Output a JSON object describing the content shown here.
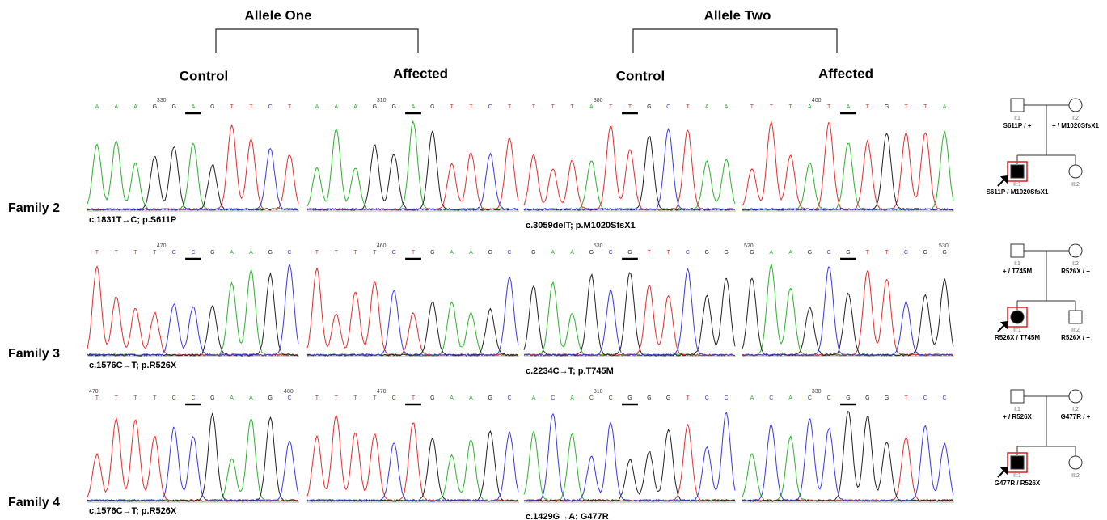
{
  "alleles": [
    "Allele One",
    "Allele Two"
  ],
  "columns": [
    "Control",
    "Affected",
    "Control",
    "Affected"
  ],
  "families": [
    {
      "label": "Family 2",
      "mutations": [
        "c.1831T→C; p.S611P",
        "c.3059delT; p.M1020SfsX1"
      ],
      "traces": [
        {
          "bases": [
            "A",
            "A",
            "A",
            "G",
            "G",
            "A",
            "G",
            "T",
            "T",
            "C",
            "T"
          ],
          "positions": [
            330
          ]
        },
        {
          "bases": [
            "A",
            "A",
            "A",
            "G",
            "G",
            "A",
            "G",
            "T",
            "T",
            "C",
            "T"
          ],
          "positions": [
            310
          ]
        },
        {
          "bases": [
            "T",
            "T",
            "T",
            "A",
            "T",
            "T",
            "G",
            "C",
            "T",
            "A",
            "A"
          ],
          "positions": [
            380
          ]
        },
        {
          "bases": [
            "T",
            "T",
            "T",
            "A",
            "T",
            "A",
            "T",
            "G",
            "T",
            "T",
            "A"
          ],
          "positions": [
            400
          ]
        }
      ],
      "pedigree": [
        {
          "id": "I:1",
          "genotype": "S611P / +"
        },
        {
          "id": "I:2",
          "genotype": "+ / M1020SfsX1"
        },
        {
          "id": "II:1",
          "genotype": "S611P / M1020SfsX1"
        },
        {
          "id": "II:2"
        }
      ]
    },
    {
      "label": "Family 3",
      "mutations": [
        "c.1576C→T; p.R526X",
        "c.2234C→T; p.T745M"
      ],
      "traces": [
        {
          "bases": [
            "T",
            "T",
            "T",
            "T",
            "C",
            "C",
            "G",
            "A",
            "A",
            "G",
            "C"
          ],
          "positions": [
            470
          ]
        },
        {
          "bases": [
            "T",
            "T",
            "T",
            "T",
            "C",
            "T",
            "G",
            "A",
            "A",
            "G",
            "C"
          ],
          "positions": [
            460
          ]
        },
        {
          "bases": [
            "G",
            "A",
            "A",
            "G",
            "C",
            "G",
            "T",
            "T",
            "C",
            "G",
            "G"
          ],
          "positions": [
            530
          ]
        },
        {
          "bases": [
            "G",
            "A",
            "A",
            "G",
            "C",
            "G",
            "T",
            "T",
            "C",
            "G",
            "G"
          ],
          "positions": [
            520,
            530
          ]
        }
      ],
      "pedigree": [
        {
          "id": "I:1",
          "genotype": "+ / T745M"
        },
        {
          "id": "I:2",
          "genotype": "R526X / +"
        },
        {
          "id": "II:1",
          "genotype": "R526X / T745M"
        },
        {
          "id": "II:2",
          "genotype": "R526X / +"
        }
      ]
    },
    {
      "label": "Family 4",
      "mutations": [
        "c.1576C→T; p.R526X",
        "c.1429G→A; G477R"
      ],
      "traces": [
        {
          "bases": [
            "T",
            "T",
            "T",
            "T",
            "C",
            "C",
            "G",
            "A",
            "A",
            "G",
            "C"
          ],
          "positions": [
            470,
            480
          ]
        },
        {
          "bases": [
            "T",
            "T",
            "T",
            "T",
            "C",
            "T",
            "G",
            "A",
            "A",
            "G",
            "C"
          ],
          "positions": [
            470
          ]
        },
        {
          "bases": [
            "A",
            "C",
            "A",
            "C",
            "C",
            "G",
            "G",
            "G",
            "T",
            "C",
            "C"
          ],
          "positions": [
            310
          ]
        },
        {
          "bases": [
            "A",
            "C",
            "A",
            "C",
            "C",
            "G",
            "G",
            "G",
            "T",
            "C",
            "C"
          ],
          "positions": [
            330
          ]
        }
      ],
      "pedigree": [
        {
          "id": "I:1",
          "genotype": "+ / R526X"
        },
        {
          "id": "I:2",
          "genotype": "G477R / +"
        },
        {
          "id": "II:1",
          "genotype": "G477R / R526X"
        },
        {
          "id": "II:2"
        }
      ]
    }
  ]
}
